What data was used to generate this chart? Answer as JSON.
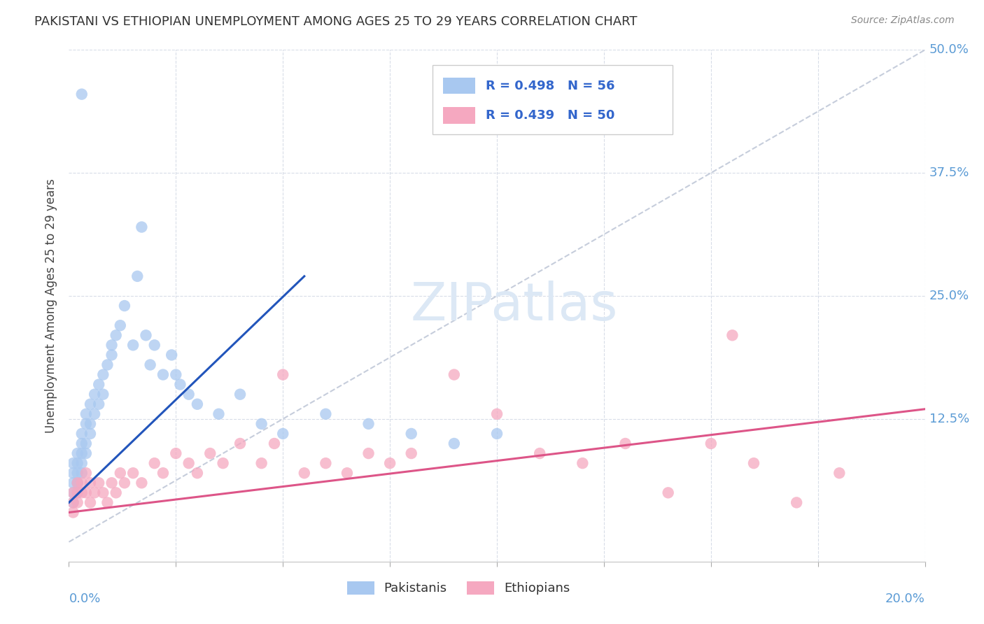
{
  "title": "PAKISTANI VS ETHIOPIAN UNEMPLOYMENT AMONG AGES 25 TO 29 YEARS CORRELATION CHART",
  "source": "Source: ZipAtlas.com",
  "ylabel": "Unemployment Among Ages 25 to 29 years",
  "xlim": [
    0,
    0.2
  ],
  "ylim": [
    -0.02,
    0.5
  ],
  "pakistani_color": "#a8c8f0",
  "ethiopian_color": "#f5a8c0",
  "pakistani_line_color": "#2255bb",
  "ethiopian_line_color": "#dd5588",
  "diagonal_color": "#c0c8d8",
  "background_color": "#ffffff",
  "grid_color": "#d8dde8",
  "right_label_color": "#5b9bd5",
  "pak_scatter": {
    "x": [
      0.001,
      0.001,
      0.001,
      0.001,
      0.001,
      0.002,
      0.002,
      0.002,
      0.002,
      0.002,
      0.003,
      0.003,
      0.003,
      0.003,
      0.003,
      0.004,
      0.004,
      0.004,
      0.004,
      0.005,
      0.005,
      0.005,
      0.006,
      0.006,
      0.007,
      0.007,
      0.008,
      0.008,
      0.009,
      0.01,
      0.01,
      0.011,
      0.012,
      0.013,
      0.015,
      0.016,
      0.017,
      0.018,
      0.019,
      0.02,
      0.022,
      0.024,
      0.026,
      0.028,
      0.03,
      0.035,
      0.04,
      0.045,
      0.05,
      0.06,
      0.07,
      0.08,
      0.09,
      0.1,
      0.025,
      0.003
    ],
    "y": [
      0.05,
      0.06,
      0.08,
      0.04,
      0.07,
      0.06,
      0.07,
      0.08,
      0.05,
      0.09,
      0.09,
      0.1,
      0.07,
      0.11,
      0.08,
      0.1,
      0.12,
      0.13,
      0.09,
      0.11,
      0.14,
      0.12,
      0.13,
      0.15,
      0.16,
      0.14,
      0.17,
      0.15,
      0.18,
      0.2,
      0.19,
      0.21,
      0.22,
      0.24,
      0.2,
      0.27,
      0.32,
      0.21,
      0.18,
      0.2,
      0.17,
      0.19,
      0.16,
      0.15,
      0.14,
      0.13,
      0.15,
      0.12,
      0.11,
      0.13,
      0.12,
      0.11,
      0.1,
      0.11,
      0.17,
      0.455
    ]
  },
  "eth_scatter": {
    "x": [
      0.001,
      0.001,
      0.001,
      0.002,
      0.002,
      0.002,
      0.003,
      0.003,
      0.004,
      0.004,
      0.005,
      0.005,
      0.006,
      0.007,
      0.008,
      0.009,
      0.01,
      0.011,
      0.012,
      0.013,
      0.015,
      0.017,
      0.02,
      0.022,
      0.025,
      0.028,
      0.03,
      0.033,
      0.036,
      0.04,
      0.045,
      0.05,
      0.055,
      0.06,
      0.065,
      0.07,
      0.075,
      0.08,
      0.09,
      0.1,
      0.11,
      0.12,
      0.13,
      0.14,
      0.15,
      0.16,
      0.17,
      0.18,
      0.155,
      0.048
    ],
    "y": [
      0.04,
      0.05,
      0.03,
      0.06,
      0.05,
      0.04,
      0.05,
      0.06,
      0.05,
      0.07,
      0.06,
      0.04,
      0.05,
      0.06,
      0.05,
      0.04,
      0.06,
      0.05,
      0.07,
      0.06,
      0.07,
      0.06,
      0.08,
      0.07,
      0.09,
      0.08,
      0.07,
      0.09,
      0.08,
      0.1,
      0.08,
      0.17,
      0.07,
      0.08,
      0.07,
      0.09,
      0.08,
      0.09,
      0.17,
      0.13,
      0.09,
      0.08,
      0.1,
      0.05,
      0.1,
      0.08,
      0.04,
      0.07,
      0.21,
      0.1
    ]
  },
  "pak_line": {
    "x0": 0.0,
    "x1": 0.055,
    "y0": 0.04,
    "y1": 0.27
  },
  "eth_line": {
    "x0": 0.0,
    "x1": 0.2,
    "y0": 0.03,
    "y1": 0.135
  }
}
